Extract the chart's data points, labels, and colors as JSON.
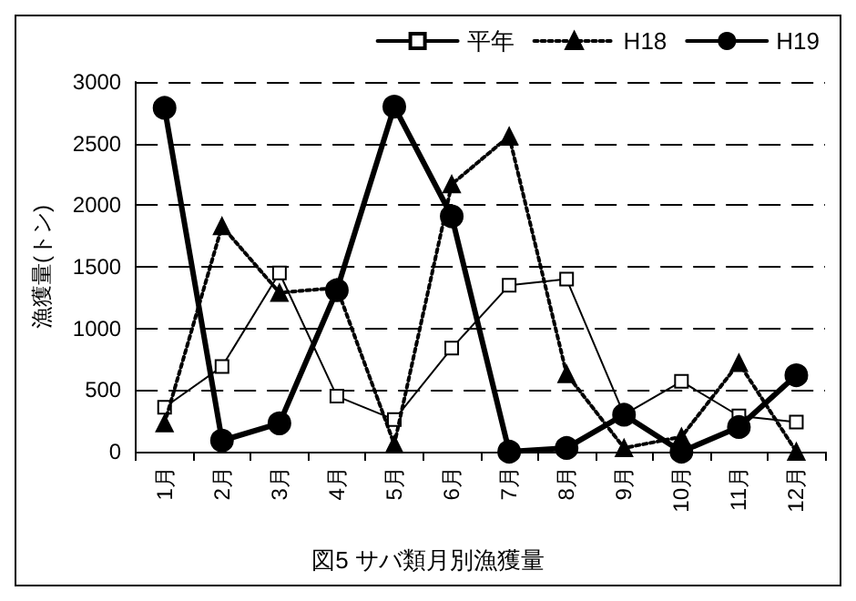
{
  "chart_data": {
    "type": "line",
    "title": "図5 サバ類月別漁獲量",
    "ylabel": "漁獲量(トン)",
    "categories": [
      "1月",
      "2月",
      "3月",
      "4月",
      "5月",
      "6月",
      "7月",
      "8月",
      "9月",
      "10月",
      "11月",
      "12月"
    ],
    "series": [
      {
        "name": "平年",
        "color": "#000000",
        "marker": "square",
        "line_style": "solid",
        "values": [
          360,
          690,
          1450,
          450,
          260,
          840,
          1350,
          1400,
          300,
          570,
          290,
          240
        ]
      },
      {
        "name": "H18",
        "color": "#000000",
        "marker": "triangle",
        "line_style": "dotted",
        "values": [
          230,
          1830,
          1290,
          1330,
          60,
          2170,
          2560,
          630,
          30,
          120,
          720,
          0
        ]
      },
      {
        "name": "H19",
        "color": "#000000",
        "marker": "circle",
        "line_style": "solid",
        "values": [
          2790,
          90,
          230,
          1310,
          2800,
          1910,
          0,
          30,
          300,
          0,
          200,
          620
        ]
      }
    ],
    "ylim": [
      0,
      3000
    ],
    "yticks": [
      0,
      500,
      1000,
      1500,
      2000,
      2500,
      3000
    ],
    "grid": "y",
    "legend": "top right"
  }
}
